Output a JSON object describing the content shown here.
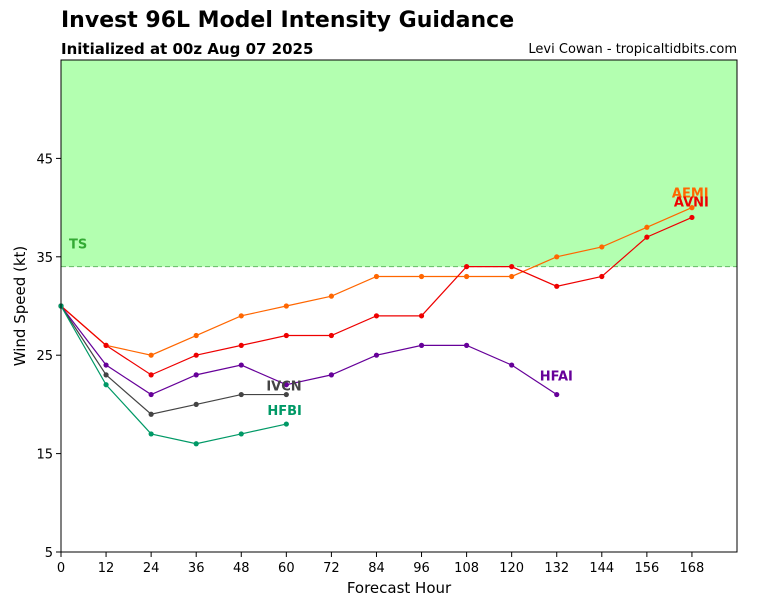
{
  "header": {
    "title": "Invest 96L Model Intensity Guidance",
    "subtitle": "Initialized at 00z Aug 07 2025",
    "credit": "Levi Cowan - tropicaltidbits.com"
  },
  "chart_data": {
    "type": "line",
    "xlabel": "Forecast Hour",
    "ylabel": "Wind Speed (kt)",
    "xlim": [
      0,
      180
    ],
    "ylim": [
      5,
      55
    ],
    "xticks": [
      0,
      12,
      24,
      36,
      48,
      60,
      72,
      84,
      96,
      108,
      120,
      132,
      144,
      156,
      168
    ],
    "yticks": [
      5,
      15,
      25,
      35,
      45
    ],
    "threshold": {
      "label": "TS",
      "value": 34,
      "band_color": "#b3ffb0",
      "label_color": "#33aa33",
      "line_color": "#66bb66"
    },
    "series": [
      {
        "name": "AEMI",
        "color": "#ff6600",
        "x": [
          0,
          12,
          24,
          36,
          48,
          60,
          72,
          84,
          96,
          108,
          120,
          132,
          144,
          156,
          168
        ],
        "y": [
          30,
          26,
          25,
          27,
          29,
          30,
          31,
          33,
          33,
          33,
          33,
          35,
          36,
          38,
          40
        ]
      },
      {
        "name": "AVNI",
        "color": "#ee0000",
        "x": [
          0,
          12,
          24,
          36,
          48,
          60,
          72,
          84,
          96,
          108,
          120,
          132,
          144,
          156,
          168
        ],
        "y": [
          30,
          26,
          23,
          25,
          26,
          27,
          27,
          29,
          29,
          34,
          34,
          32,
          33,
          37,
          39
        ]
      },
      {
        "name": "HFAI",
        "color": "#660099",
        "x": [
          0,
          12,
          24,
          36,
          48,
          60,
          72,
          84,
          96,
          108,
          120,
          132
        ],
        "y": [
          30,
          24,
          21,
          23,
          24,
          22,
          23,
          25,
          26,
          26,
          24,
          21
        ]
      },
      {
        "name": "IVCN",
        "color": "#444444",
        "x": [
          0,
          12,
          24,
          36,
          48,
          60
        ],
        "y": [
          30,
          23,
          19,
          20,
          21,
          21
        ]
      },
      {
        "name": "HFBI",
        "color": "#009966",
        "x": [
          0,
          12,
          24,
          36,
          48,
          60
        ],
        "y": [
          30,
          22,
          17,
          16,
          17,
          18
        ]
      }
    ]
  }
}
